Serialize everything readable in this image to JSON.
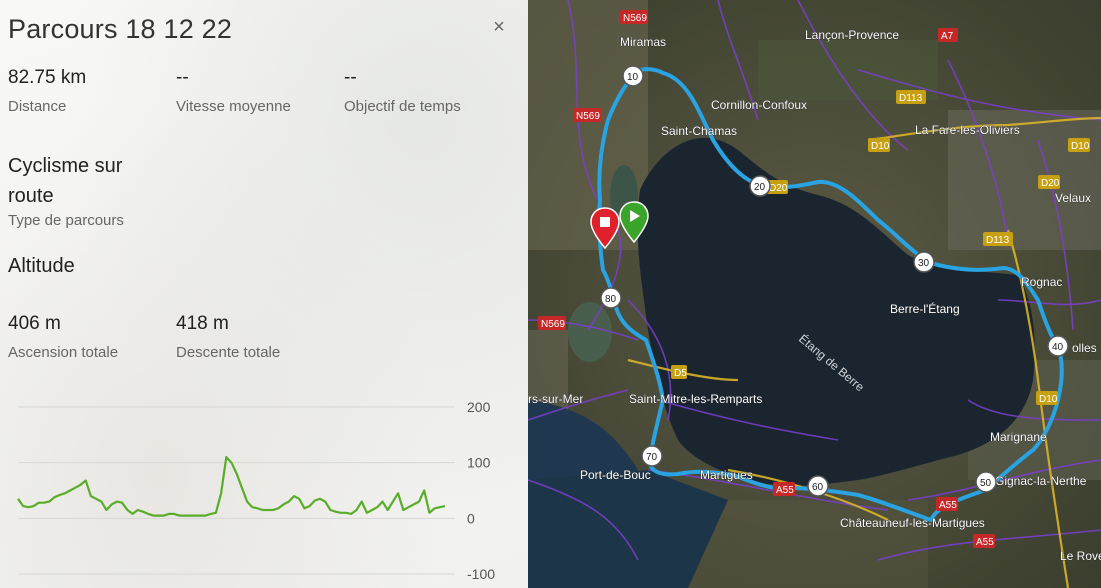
{
  "panel": {
    "title": "Parcours 18 12 22",
    "close_glyph": "×",
    "stats": [
      {
        "value": "82.75 km",
        "label": "Distance"
      },
      {
        "value": "--",
        "label": "Vitesse moyenne"
      },
      {
        "value": "--",
        "label": "Objectif de temps"
      }
    ],
    "route_type": {
      "value": "Cyclisme sur route",
      "label": "Type de parcours"
    },
    "altitude_heading": "Altitude",
    "elevation": [
      {
        "value": "406 m",
        "label": "Ascension totale"
      },
      {
        "value": "418 m",
        "label": "Descente totale"
      }
    ]
  },
  "chart_data": {
    "type": "line",
    "title": "",
    "xlabel": "",
    "ylabel": "",
    "ylim": [
      -100,
      200
    ],
    "yticks": [
      200,
      100,
      0,
      -100
    ],
    "grid": true,
    "series": [
      {
        "color": "#5aad28",
        "x": [
          0,
          1,
          2,
          3,
          4,
          5,
          6,
          7,
          8,
          9,
          10,
          11,
          12,
          13,
          14,
          15,
          16,
          17,
          18,
          19,
          20,
          21,
          22,
          23,
          24,
          25,
          26,
          27,
          28,
          29,
          30,
          31,
          32,
          33,
          34,
          35,
          36,
          37,
          38,
          39,
          40,
          41,
          42,
          43,
          44,
          45,
          46,
          47,
          48,
          49,
          50,
          51,
          52,
          53,
          54,
          55,
          56,
          57,
          58,
          59,
          60,
          61,
          62,
          63,
          64,
          65,
          66,
          67,
          68,
          69,
          70,
          71,
          72,
          73,
          74,
          75,
          76,
          77,
          78,
          79,
          80,
          81,
          82
        ],
        "y": [
          35,
          22,
          20,
          22,
          28,
          28,
          30,
          38,
          42,
          45,
          50,
          55,
          60,
          68,
          40,
          35,
          30,
          15,
          25,
          30,
          28,
          15,
          8,
          15,
          12,
          8,
          5,
          5,
          5,
          8,
          8,
          5,
          5,
          5,
          5,
          5,
          5,
          8,
          10,
          45,
          110,
          100,
          80,
          55,
          30,
          20,
          18,
          15,
          15,
          15,
          18,
          25,
          30,
          40,
          35,
          18,
          22,
          32,
          35,
          30,
          15,
          12,
          10,
          10,
          8,
          15,
          30,
          10,
          15,
          20,
          30,
          15,
          30,
          45,
          15,
          20,
          25,
          30,
          50,
          10,
          18,
          20,
          22
        ]
      }
    ]
  },
  "map": {
    "markers": {
      "start_color": "#3aa52a",
      "end_color": "#e0202a"
    },
    "route_color": "#29a3e1",
    "distance_markers": [
      "10",
      "20",
      "30",
      "40",
      "50",
      "60",
      "70",
      "80"
    ],
    "places": [
      "Miramas",
      "Lançon-Provence",
      "Cornillon-Confoux",
      "Saint-Chamas",
      "La Fare-les-Oliviers",
      "Velaux",
      "Berre-l'Étang",
      "Rognac",
      "Étang de Berre",
      "Saint-Mitre-les-Remparts",
      "Port-de-Bouc",
      "Martigues",
      "Marignane",
      "Gignac-la-Nerthe",
      "Châteauneuf-les-Martigues",
      "Le Rove",
      "rs-sur-Mer",
      "olles"
    ],
    "road_badges": [
      {
        "text": "N569",
        "color": "#c62828"
      },
      {
        "text": "N569",
        "color": "#c62828"
      },
      {
        "text": "N569",
        "color": "#c62828"
      },
      {
        "text": "A7",
        "color": "#c62828"
      },
      {
        "text": "D113",
        "color": "#c6a010"
      },
      {
        "text": "D113",
        "color": "#c6a010"
      },
      {
        "text": "D10",
        "color": "#c6a010"
      },
      {
        "text": "D10",
        "color": "#c6a010"
      },
      {
        "text": "D20",
        "color": "#c6a010"
      },
      {
        "text": "D10",
        "color": "#c6a010"
      },
      {
        "text": "D5",
        "color": "#c6a010"
      },
      {
        "text": "D20",
        "color": "#c6a010"
      },
      {
        "text": "A55",
        "color": "#c62828"
      },
      {
        "text": "A55",
        "color": "#c62828"
      },
      {
        "text": "A55",
        "color": "#c62828"
      }
    ]
  }
}
